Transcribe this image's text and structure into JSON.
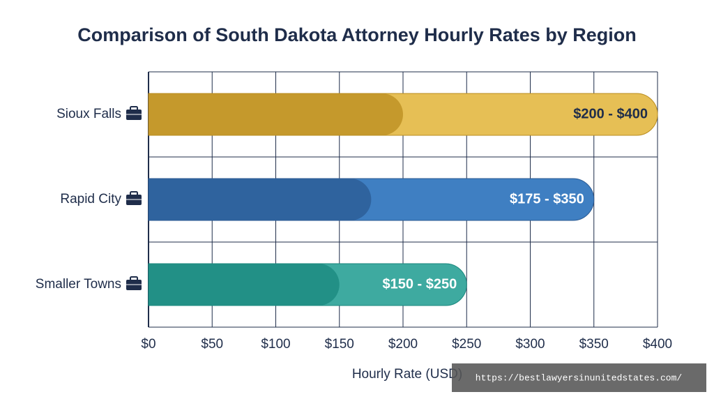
{
  "chart_data": {
    "type": "range_bar",
    "title": "Comparison of South Dakota Attorney Hourly Rates by Region",
    "x_label": "Hourly Rate (USD)",
    "categories": [
      "Sioux Falls",
      "Rapid City",
      "Smaller Towns"
    ],
    "low": [
      200,
      175,
      150
    ],
    "high": [
      400,
      350,
      250
    ],
    "value_labels": [
      "$200 - $400",
      "$175 - $350",
      "$150 - $250"
    ],
    "colors": [
      "#e6bf55",
      "#3f7fc2",
      "#3eaaa0"
    ],
    "dark_colors": [
      "#b98c1f",
      "#2b5a92",
      "#1a877d"
    ],
    "value_label_colors": [
      "#1f2d4a",
      "#ffffff",
      "#ffffff"
    ],
    "xlim": [
      0,
      400
    ],
    "xticks": [
      {
        "value": 0,
        "label": "$0"
      },
      {
        "value": 50,
        "label": "$50"
      },
      {
        "value": 100,
        "label": "$100"
      },
      {
        "value": 150,
        "label": "$150"
      },
      {
        "value": 200,
        "label": "$200"
      },
      {
        "value": 250,
        "label": "$250"
      },
      {
        "value": 300,
        "label": "$300"
      },
      {
        "value": 350,
        "label": "$350"
      },
      {
        "value": 400,
        "label": "$400"
      }
    ],
    "grid": true
  },
  "watermark": "https://bestlawyersinunitedstates.com/"
}
